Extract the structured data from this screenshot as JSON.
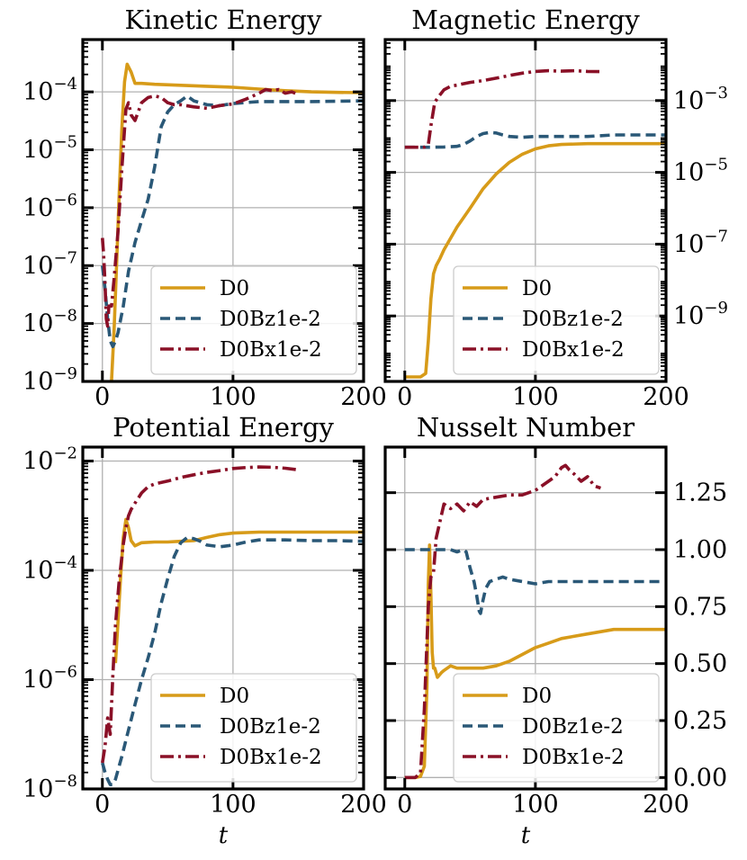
{
  "colors": {
    "D0": "#d79b19",
    "D0Bz1e-2": "#2a5877",
    "D0Bx1e-2": "#8a1027"
  },
  "figure": {
    "x_axis_label": "t"
  },
  "chart_data": [
    {
      "type": "line",
      "title": "Kinetic Energy",
      "xscale": "linear",
      "yscale": "log",
      "xlim": [
        -15,
        200
      ],
      "ylim": [
        1e-09,
        0.0008
      ],
      "xticks": [
        0,
        100,
        200
      ],
      "xtick_labels": [
        "0",
        "100",
        "200"
      ],
      "yticks": [
        0.0001,
        1e-05,
        1e-06,
        1e-07,
        1e-08,
        1e-09
      ],
      "ytick_labels": [
        {
          "base": "10",
          "exp": "−4"
        },
        {
          "base": "10",
          "exp": "−5"
        },
        {
          "base": "10",
          "exp": "−6"
        },
        {
          "base": "10",
          "exp": "−7"
        },
        {
          "base": "10",
          "exp": "−8"
        },
        {
          "base": "10",
          "exp": "−9"
        }
      ],
      "ytick_side": "left",
      "xlabel": "",
      "legend": {
        "position": "lower-right",
        "entries": [
          "D0",
          "D0Bz1e-2",
          "D0Bx1e-2"
        ]
      },
      "series": [
        {
          "name": "D0",
          "style": "solid",
          "x": [
            7,
            9,
            11,
            13,
            15,
            17,
            19,
            22,
            25,
            30,
            40,
            60,
            80,
            100,
            120,
            140,
            160,
            180,
            200
          ],
          "y": [
            1e-09,
            8e-09,
            1.2e-07,
            2e-06,
            2.5e-05,
            0.00015,
            0.0003,
            0.00022,
            0.00014,
            0.00014,
            0.000135,
            0.00013,
            0.000125,
            0.00012,
            0.000112,
            0.000105,
            0.0001,
            9.8e-05,
            9.7e-05
          ]
        },
        {
          "name": "D0Bz1e-2",
          "style": "dashed",
          "x": [
            0,
            2,
            4,
            6,
            8,
            10,
            12,
            16,
            20,
            25,
            30,
            35,
            40,
            45,
            50,
            55,
            60,
            65,
            70,
            80,
            90,
            100,
            120,
            140,
            160,
            180,
            200
          ],
          "y": [
            1e-07,
            4e-08,
            1.2e-08,
            5e-09,
            4e-09,
            5e-09,
            7e-09,
            2e-08,
            8e-08,
            2.5e-07,
            6e-07,
            1.4e-06,
            5e-06,
            2.5e-05,
            4.5e-05,
            6e-05,
            7e-05,
            8.5e-05,
            7e-05,
            6e-05,
            5.8e-05,
            6.3e-05,
            6.8e-05,
            6.8e-05,
            6.8e-05,
            6.9e-05,
            7e-05
          ]
        },
        {
          "name": "D0Bx1e-2",
          "style": "dashdot",
          "x": [
            0,
            1,
            2,
            3,
            4,
            5,
            7,
            9,
            12,
            15,
            18,
            20,
            22,
            25,
            30,
            35,
            40,
            45,
            50,
            55,
            60,
            70,
            80,
            90,
            100,
            110,
            120,
            125,
            130,
            135,
            140,
            145,
            150
          ],
          "y": [
            3e-07,
            1.5e-07,
            5e-08,
            1.2e-08,
            9e-09,
            2e-08,
            2e-08,
            6e-08,
            4e-07,
            5e-06,
            5e-05,
            6.5e-05,
            4e-05,
            3.2e-05,
            6.5e-05,
            8e-05,
            8.5e-05,
            8e-05,
            6.5e-05,
            6e-05,
            6e-05,
            5.5e-05,
            5.2e-05,
            5.8e-05,
            6.2e-05,
            7.5e-05,
            9.5e-05,
            0.00011,
            0.000105,
            0.00011,
            9.5e-05,
            0.0001,
            9e-05
          ]
        }
      ]
    },
    {
      "type": "line",
      "title": "Magnetic Energy",
      "xscale": "linear",
      "yscale": "log",
      "xlim": [
        -15,
        200
      ],
      "ylim": [
        1.5e-11,
        0.05
      ],
      "xticks": [
        0,
        100,
        200
      ],
      "xtick_labels": [
        "0",
        "100",
        "200"
      ],
      "yticks": [
        0.001,
        1e-05,
        1e-07,
        1e-09
      ],
      "ytick_labels": [
        {
          "base": "10",
          "exp": "−3"
        },
        {
          "base": "10",
          "exp": "−5"
        },
        {
          "base": "10",
          "exp": "−7"
        },
        {
          "base": "10",
          "exp": "−9"
        }
      ],
      "ytick_side": "right",
      "xlabel": "",
      "legend": {
        "position": "lower-right",
        "entries": [
          "D0",
          "D0Bz1e-2",
          "D0Bx1e-2"
        ]
      },
      "series": [
        {
          "name": "D0",
          "style": "solid",
          "x": [
            0,
            8,
            12,
            16,
            18,
            20,
            22,
            24,
            27,
            30,
            40,
            50,
            60,
            70,
            80,
            90,
            100,
            110,
            120,
            140,
            160,
            180,
            200
          ],
          "y": [
            2e-11,
            2e-11,
            2e-11,
            2.5e-11,
            2e-10,
            3e-09,
            1.5e-08,
            2.5e-08,
            4e-08,
            7e-08,
            3e-07,
            1e-06,
            3.5e-06,
            9e-06,
            1.9e-05,
            3.2e-05,
            4.5e-05,
            5.5e-05,
            6e-05,
            6.3e-05,
            6.3e-05,
            6.3e-05,
            6.3e-05
          ]
        },
        {
          "name": "D0Bz1e-2",
          "style": "dashed",
          "x": [
            0,
            10,
            20,
            30,
            40,
            45,
            50,
            55,
            60,
            65,
            70,
            75,
            80,
            90,
            100,
            110,
            120,
            130,
            140,
            160,
            180,
            200
          ],
          "y": [
            5e-05,
            5e-05,
            5e-05,
            5.1e-05,
            5.3e-05,
            6e-05,
            7.5e-05,
            0.0001,
            0.00012,
            0.00013,
            0.000125,
            0.00011,
            0.0001,
            9.5e-05,
            0.0001,
            0.0001,
            0.0001,
            0.0001,
            0.0001,
            0.00011,
            0.00011,
            0.00011
          ]
        },
        {
          "name": "D0Bx1e-2",
          "style": "dashdot",
          "x": [
            0,
            10,
            15,
            18,
            20,
            23,
            26,
            30,
            35,
            40,
            50,
            60,
            70,
            80,
            90,
            100,
            110,
            120,
            130,
            140,
            150
          ],
          "y": [
            5e-05,
            5e-05,
            5e-05,
            6e-05,
            0.0002,
            0.0009,
            0.0013,
            0.002,
            0.0025,
            0.0027,
            0.0032,
            0.0036,
            0.0042,
            0.005,
            0.0058,
            0.0065,
            0.0068,
            0.0066,
            0.0068,
            0.0065,
            0.0064
          ]
        }
      ]
    },
    {
      "type": "line",
      "title": "Potential Energy",
      "xscale": "linear",
      "yscale": "log",
      "xlim": [
        -15,
        200
      ],
      "ylim": [
        1e-08,
        0.018
      ],
      "xticks": [
        0,
        100,
        200
      ],
      "xtick_labels": [
        "0",
        "100",
        "200"
      ],
      "yticks": [
        0.01,
        0.0001,
        1e-06,
        1e-08
      ],
      "ytick_labels": [
        {
          "base": "10",
          "exp": "−2"
        },
        {
          "base": "10",
          "exp": "−4"
        },
        {
          "base": "10",
          "exp": "−6"
        },
        {
          "base": "10",
          "exp": "−8"
        }
      ],
      "ytick_side": "left",
      "xlabel": "t",
      "legend": {
        "position": "lower-right",
        "entries": [
          "D0",
          "D0Bz1e-2",
          "D0Bx1e-2"
        ]
      },
      "series": [
        {
          "name": "D0",
          "style": "solid",
          "x": [
            10,
            12,
            14,
            16,
            18,
            20,
            22,
            25,
            30,
            40,
            50,
            60,
            70,
            80,
            90,
            100,
            120,
            140,
            160,
            180,
            200
          ],
          "y": [
            2e-06,
            1.2e-05,
            8e-05,
            0.0004,
            0.00085,
            0.0006,
            0.00035,
            0.00028,
            0.00032,
            0.00033,
            0.00033,
            0.00034,
            0.00035,
            0.0004,
            0.00045,
            0.00048,
            0.0005,
            0.0005,
            0.0005,
            0.0005,
            0.0005
          ]
        },
        {
          "name": "D0Bz1e-2",
          "style": "dashed",
          "x": [
            0,
            2,
            4,
            6,
            8,
            10,
            15,
            20,
            25,
            30,
            35,
            40,
            45,
            50,
            55,
            60,
            65,
            70,
            75,
            80,
            90,
            100,
            110,
            120,
            140,
            160,
            180,
            200
          ],
          "y": [
            3e-08,
            2e-08,
            1.5e-08,
            1.2e-08,
            1.2e-08,
            1.5e-08,
            4e-08,
            1.2e-07,
            3.5e-07,
            1e-06,
            2.5e-06,
            7e-06,
            2.5e-05,
            7e-05,
            0.00018,
            0.00032,
            0.0004,
            0.00038,
            0.00034,
            0.00029,
            0.00027,
            0.00029,
            0.00033,
            0.00036,
            0.00036,
            0.00035,
            0.00035,
            0.00034
          ]
        },
        {
          "name": "D0Bx1e-2",
          "style": "dashdot",
          "x": [
            0,
            2,
            4,
            6,
            8,
            10,
            13,
            16,
            18,
            20,
            22,
            25,
            28,
            30,
            35,
            40,
            50,
            60,
            70,
            80,
            90,
            100,
            110,
            120,
            130,
            140,
            150
          ],
          "y": [
            3e-08,
            6e-08,
            2e-07,
            1e-07,
            1.2e-06,
            1e-05,
            7e-05,
            0.0003,
            0.0006,
            0.001,
            0.0013,
            0.0017,
            0.0022,
            0.0026,
            0.0034,
            0.0038,
            0.0043,
            0.005,
            0.0056,
            0.0062,
            0.0067,
            0.0073,
            0.0076,
            0.0078,
            0.0077,
            0.0074,
            0.0069
          ]
        }
      ]
    },
    {
      "type": "line",
      "title": "Nusselt Number",
      "xscale": "linear",
      "yscale": "linear",
      "xlim": [
        -15,
        200
      ],
      "ylim": [
        -0.05,
        1.45
      ],
      "xticks": [
        0,
        100,
        200
      ],
      "xtick_labels": [
        "0",
        "100",
        "200"
      ],
      "yticks": [
        0,
        0.25,
        0.5,
        0.75,
        1.0,
        1.25
      ],
      "ytick_labels": [
        "0.00",
        "0.25",
        "0.50",
        "0.75",
        "1.00",
        "1.25"
      ],
      "ytick_side": "right",
      "xlabel": "t",
      "legend": {
        "position": "lower-right",
        "entries": [
          "D0",
          "D0Bz1e-2",
          "D0Bx1e-2"
        ]
      },
      "series": [
        {
          "name": "D0",
          "style": "solid",
          "x": [
            0,
            8,
            12,
            15,
            17,
            18,
            19,
            20,
            21,
            22,
            23,
            25,
            28,
            30,
            35,
            40,
            50,
            60,
            70,
            80,
            90,
            100,
            110,
            120,
            140,
            160,
            180,
            200
          ],
          "y": [
            0,
            0,
            0.005,
            0.05,
            0.4,
            0.85,
            1.02,
            0.8,
            0.55,
            0.48,
            0.48,
            0.44,
            0.46,
            0.47,
            0.49,
            0.48,
            0.48,
            0.48,
            0.49,
            0.51,
            0.54,
            0.57,
            0.59,
            0.61,
            0.63,
            0.65,
            0.65,
            0.65
          ]
        },
        {
          "name": "D0Bz1e-2",
          "style": "dashed",
          "x": [
            0,
            10,
            20,
            25,
            30,
            35,
            40,
            45,
            47,
            50,
            53,
            55,
            57,
            58,
            60,
            62,
            65,
            70,
            75,
            80,
            90,
            100,
            110,
            120,
            140,
            160,
            180,
            200
          ],
          "y": [
            1.0,
            1.0,
            1.0,
            1.0,
            1.0,
            1.0,
            0.99,
            1.0,
            0.99,
            0.92,
            0.86,
            0.8,
            0.73,
            0.72,
            0.78,
            0.83,
            0.86,
            0.87,
            0.88,
            0.87,
            0.86,
            0.85,
            0.86,
            0.86,
            0.86,
            0.86,
            0.86,
            0.86
          ]
        },
        {
          "name": "D0Bx1e-2",
          "style": "dashdot",
          "x": [
            0,
            8,
            12,
            15,
            18,
            20,
            22,
            24,
            26,
            28,
            30,
            35,
            40,
            45,
            50,
            55,
            60,
            70,
            80,
            90,
            100,
            110,
            115,
            120,
            123,
            126,
            130,
            135,
            140,
            145,
            150
          ],
          "y": [
            0,
            0,
            0.02,
            0.3,
            0.75,
            0.88,
            0.9,
            1.05,
            1.1,
            1.15,
            1.2,
            1.18,
            1.2,
            1.17,
            1.21,
            1.19,
            1.22,
            1.23,
            1.24,
            1.24,
            1.26,
            1.3,
            1.32,
            1.36,
            1.37,
            1.35,
            1.33,
            1.3,
            1.32,
            1.28,
            1.27
          ]
        }
      ]
    }
  ]
}
